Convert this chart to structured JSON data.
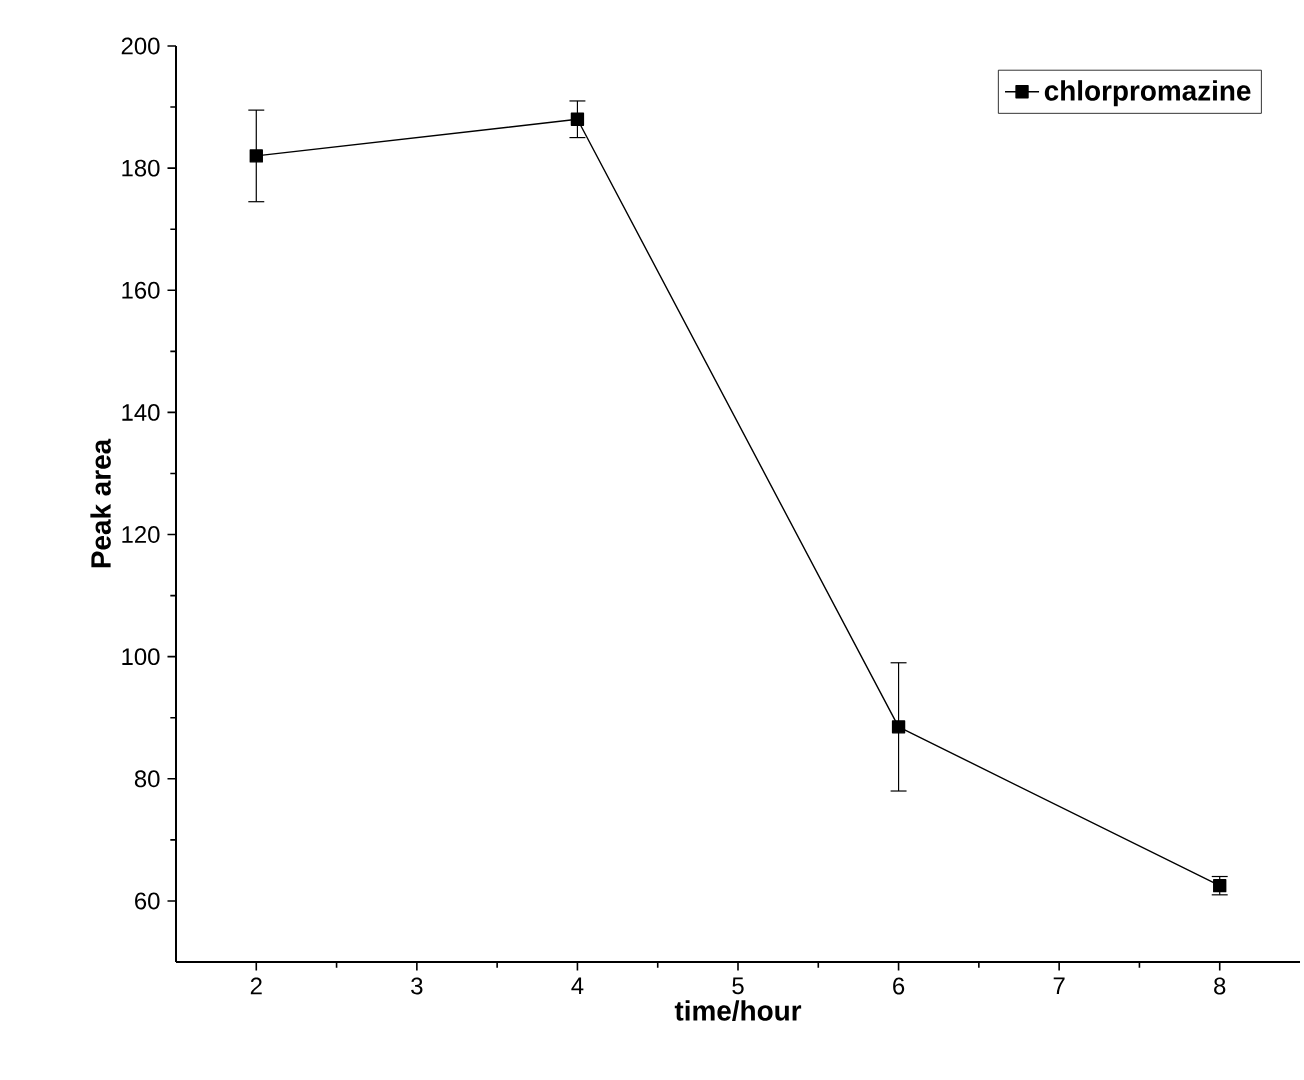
{
  "chart_data": {
    "type": "line",
    "xlabel": "time/hour",
    "ylabel": "Peak area",
    "x": [
      2,
      4,
      6,
      8
    ],
    "series": [
      {
        "name": "chlorpromazine",
        "color": "#000000",
        "values": [
          182,
          188,
          88.5,
          62.5
        ],
        "errors": [
          7.5,
          3,
          10.5,
          1.5
        ]
      }
    ],
    "xlim": [
      1.5,
      8.5
    ],
    "xticks": [
      2,
      3,
      4,
      5,
      6,
      7,
      8
    ],
    "ylim": [
      50,
      200
    ],
    "yticks": [
      60,
      80,
      100,
      120,
      140,
      160,
      180,
      200
    ],
    "grid": false,
    "legend": "top right",
    "marker": "square",
    "line_style": "solid"
  }
}
